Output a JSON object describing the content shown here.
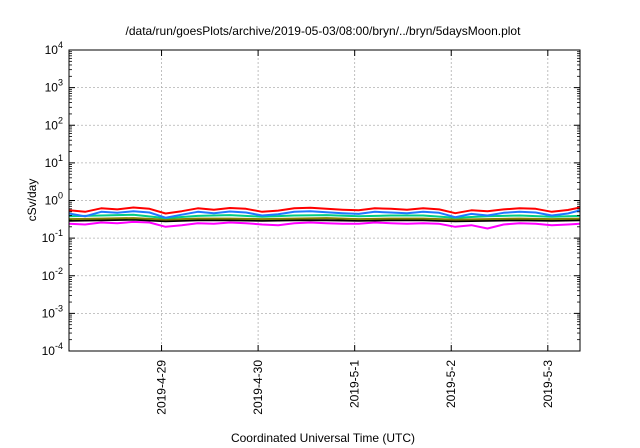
{
  "chart_data": {
    "type": "line",
    "title": "/data/run/goesPlots/archive/2019-05-03/08:00/bryn/../bryn/5daysMoon.plot",
    "xlabel": "Coordinated Universal Time (UTC)",
    "ylabel": "cSv/day",
    "yscale": "log",
    "ylim": [
      0.0001,
      10000
    ],
    "xlim": [
      "2019-04-28T01:00",
      "2019-05-03T08:00"
    ],
    "grid": true,
    "y_ticks": [
      {
        "value": 0.0001,
        "base": "10",
        "exp": "-4"
      },
      {
        "value": 0.001,
        "base": "10",
        "exp": "-3"
      },
      {
        "value": 0.01,
        "base": "10",
        "exp": "-2"
      },
      {
        "value": 0.1,
        "base": "10",
        "exp": "-1"
      },
      {
        "value": 1,
        "base": "10",
        "exp": "0"
      },
      {
        "value": 10,
        "base": "10",
        "exp": "1"
      },
      {
        "value": 100,
        "base": "10",
        "exp": "2"
      },
      {
        "value": 1000,
        "base": "10",
        "exp": "3"
      },
      {
        "value": 10000,
        "base": "10",
        "exp": "4"
      }
    ],
    "x_ticks": [
      {
        "value": "2019-04-29T00:00",
        "label": "2019-4-29"
      },
      {
        "value": "2019-04-30T00:00",
        "label": "2019-4-30"
      },
      {
        "value": "2019-05-01T00:00",
        "label": "2019-5-1"
      },
      {
        "value": "2019-05-02T00:00",
        "label": "2019-5-2"
      },
      {
        "value": "2019-05-03T00:00",
        "label": "2019-5-3"
      }
    ],
    "series": [
      {
        "color": "#ff00ff",
        "values": [
          [
            "2019-04-28T01:00",
            0.24
          ],
          [
            "2019-04-28T05:00",
            0.23
          ],
          [
            "2019-04-28T09:00",
            0.26
          ],
          [
            "2019-04-28T13:00",
            0.25
          ],
          [
            "2019-04-28T17:00",
            0.27
          ],
          [
            "2019-04-28T21:00",
            0.26
          ],
          [
            "2019-04-29T01:00",
            0.2
          ],
          [
            "2019-04-29T05:00",
            0.22
          ],
          [
            "2019-04-29T09:00",
            0.25
          ],
          [
            "2019-04-29T13:00",
            0.24
          ],
          [
            "2019-04-29T17:00",
            0.26
          ],
          [
            "2019-04-29T21:00",
            0.25
          ],
          [
            "2019-04-30T01:00",
            0.23
          ],
          [
            "2019-04-30T05:00",
            0.22
          ],
          [
            "2019-04-30T09:00",
            0.25
          ],
          [
            "2019-04-30T13:00",
            0.26
          ],
          [
            "2019-04-30T17:00",
            0.25
          ],
          [
            "2019-04-30T21:00",
            0.24
          ],
          [
            "2019-05-01T01:00",
            0.24
          ],
          [
            "2019-05-01T05:00",
            0.26
          ],
          [
            "2019-05-01T09:00",
            0.25
          ],
          [
            "2019-05-01T13:00",
            0.24
          ],
          [
            "2019-05-01T17:00",
            0.25
          ],
          [
            "2019-05-01T21:00",
            0.24
          ],
          [
            "2019-05-02T01:00",
            0.2
          ],
          [
            "2019-05-02T05:00",
            0.22
          ],
          [
            "2019-05-02T09:00",
            0.18
          ],
          [
            "2019-05-02T13:00",
            0.23
          ],
          [
            "2019-05-02T17:00",
            0.25
          ],
          [
            "2019-05-02T21:00",
            0.24
          ],
          [
            "2019-05-03T01:00",
            0.22
          ],
          [
            "2019-05-03T05:00",
            0.23
          ],
          [
            "2019-05-03T08:00",
            0.24
          ]
        ]
      },
      {
        "color": "#000000",
        "values": [
          [
            "2019-04-28T01:00",
            0.29
          ],
          [
            "2019-04-28T09:00",
            0.3
          ],
          [
            "2019-04-28T17:00",
            0.31
          ],
          [
            "2019-04-29T01:00",
            0.28
          ],
          [
            "2019-04-29T09:00",
            0.3
          ],
          [
            "2019-04-29T17:00",
            0.3
          ],
          [
            "2019-04-30T01:00",
            0.29
          ],
          [
            "2019-04-30T09:00",
            0.3
          ],
          [
            "2019-04-30T17:00",
            0.3
          ],
          [
            "2019-05-01T01:00",
            0.29
          ],
          [
            "2019-05-01T09:00",
            0.3
          ],
          [
            "2019-05-01T17:00",
            0.3
          ],
          [
            "2019-05-02T01:00",
            0.28
          ],
          [
            "2019-05-02T09:00",
            0.29
          ],
          [
            "2019-05-02T17:00",
            0.3
          ],
          [
            "2019-05-03T01:00",
            0.29
          ],
          [
            "2019-05-03T08:00",
            0.3
          ]
        ]
      },
      {
        "color": "#808000",
        "values": [
          [
            "2019-04-28T01:00",
            0.32
          ],
          [
            "2019-04-28T09:00",
            0.33
          ],
          [
            "2019-04-28T17:00",
            0.34
          ],
          [
            "2019-04-29T01:00",
            0.31
          ],
          [
            "2019-04-29T09:00",
            0.33
          ],
          [
            "2019-04-29T17:00",
            0.33
          ],
          [
            "2019-04-30T01:00",
            0.32
          ],
          [
            "2019-04-30T09:00",
            0.33
          ],
          [
            "2019-04-30T17:00",
            0.34
          ],
          [
            "2019-05-01T01:00",
            0.32
          ],
          [
            "2019-05-01T09:00",
            0.33
          ],
          [
            "2019-05-01T17:00",
            0.33
          ],
          [
            "2019-05-02T01:00",
            0.31
          ],
          [
            "2019-05-02T09:00",
            0.32
          ],
          [
            "2019-05-02T17:00",
            0.33
          ],
          [
            "2019-05-03T01:00",
            0.32
          ],
          [
            "2019-05-03T08:00",
            0.33
          ]
        ]
      },
      {
        "color": "#00cc88",
        "values": [
          [
            "2019-04-28T01:00",
            0.38
          ],
          [
            "2019-04-28T09:00",
            0.4
          ],
          [
            "2019-04-28T17:00",
            0.42
          ],
          [
            "2019-04-29T01:00",
            0.34
          ],
          [
            "2019-04-29T09:00",
            0.39
          ],
          [
            "2019-04-29T17:00",
            0.41
          ],
          [
            "2019-04-30T01:00",
            0.37
          ],
          [
            "2019-04-30T09:00",
            0.4
          ],
          [
            "2019-04-30T17:00",
            0.41
          ],
          [
            "2019-05-01T01:00",
            0.38
          ],
          [
            "2019-05-01T09:00",
            0.4
          ],
          [
            "2019-05-01T17:00",
            0.4
          ],
          [
            "2019-05-02T01:00",
            0.35
          ],
          [
            "2019-05-02T09:00",
            0.38
          ],
          [
            "2019-05-02T17:00",
            0.4
          ],
          [
            "2019-05-03T01:00",
            0.37
          ],
          [
            "2019-05-03T08:00",
            0.39
          ]
        ]
      },
      {
        "color": "#1f77ff",
        "values": [
          [
            "2019-04-28T01:00",
            0.45
          ],
          [
            "2019-04-28T05:00",
            0.38
          ],
          [
            "2019-04-28T09:00",
            0.5
          ],
          [
            "2019-04-28T13:00",
            0.47
          ],
          [
            "2019-04-28T17:00",
            0.52
          ],
          [
            "2019-04-28T21:00",
            0.48
          ],
          [
            "2019-04-29T01:00",
            0.35
          ],
          [
            "2019-04-29T05:00",
            0.42
          ],
          [
            "2019-04-29T09:00",
            0.5
          ],
          [
            "2019-04-29T13:00",
            0.46
          ],
          [
            "2019-04-29T17:00",
            0.51
          ],
          [
            "2019-04-29T21:00",
            0.48
          ],
          [
            "2019-04-30T01:00",
            0.4
          ],
          [
            "2019-04-30T05:00",
            0.43
          ],
          [
            "2019-04-30T09:00",
            0.5
          ],
          [
            "2019-04-30T13:00",
            0.52
          ],
          [
            "2019-04-30T17:00",
            0.49
          ],
          [
            "2019-04-30T21:00",
            0.46
          ],
          [
            "2019-05-01T01:00",
            0.44
          ],
          [
            "2019-05-01T05:00",
            0.5
          ],
          [
            "2019-05-01T09:00",
            0.48
          ],
          [
            "2019-05-01T13:00",
            0.46
          ],
          [
            "2019-05-01T17:00",
            0.5
          ],
          [
            "2019-05-01T21:00",
            0.47
          ],
          [
            "2019-05-02T01:00",
            0.36
          ],
          [
            "2019-05-02T05:00",
            0.44
          ],
          [
            "2019-05-02T09:00",
            0.4
          ],
          [
            "2019-05-02T13:00",
            0.47
          ],
          [
            "2019-05-02T17:00",
            0.5
          ],
          [
            "2019-05-02T21:00",
            0.48
          ],
          [
            "2019-05-03T01:00",
            0.4
          ],
          [
            "2019-05-03T05:00",
            0.45
          ],
          [
            "2019-05-03T08:00",
            0.55
          ]
        ]
      },
      {
        "color": "#ff0000",
        "values": [
          [
            "2019-04-28T01:00",
            0.55
          ],
          [
            "2019-04-28T05:00",
            0.5
          ],
          [
            "2019-04-28T09:00",
            0.62
          ],
          [
            "2019-04-28T13:00",
            0.58
          ],
          [
            "2019-04-28T17:00",
            0.65
          ],
          [
            "2019-04-28T21:00",
            0.6
          ],
          [
            "2019-04-29T01:00",
            0.45
          ],
          [
            "2019-04-29T05:00",
            0.52
          ],
          [
            "2019-04-29T09:00",
            0.62
          ],
          [
            "2019-04-29T13:00",
            0.57
          ],
          [
            "2019-04-29T17:00",
            0.63
          ],
          [
            "2019-04-29T21:00",
            0.6
          ],
          [
            "2019-04-30T01:00",
            0.5
          ],
          [
            "2019-04-30T05:00",
            0.54
          ],
          [
            "2019-04-30T09:00",
            0.62
          ],
          [
            "2019-04-30T13:00",
            0.64
          ],
          [
            "2019-04-30T17:00",
            0.6
          ],
          [
            "2019-04-30T21:00",
            0.57
          ],
          [
            "2019-05-01T01:00",
            0.55
          ],
          [
            "2019-05-01T05:00",
            0.62
          ],
          [
            "2019-05-01T09:00",
            0.6
          ],
          [
            "2019-05-01T13:00",
            0.57
          ],
          [
            "2019-05-01T17:00",
            0.62
          ],
          [
            "2019-05-01T21:00",
            0.58
          ],
          [
            "2019-05-02T01:00",
            0.46
          ],
          [
            "2019-05-02T05:00",
            0.55
          ],
          [
            "2019-05-02T09:00",
            0.52
          ],
          [
            "2019-05-02T13:00",
            0.58
          ],
          [
            "2019-05-02T17:00",
            0.62
          ],
          [
            "2019-05-02T21:00",
            0.6
          ],
          [
            "2019-05-03T01:00",
            0.5
          ],
          [
            "2019-05-03T05:00",
            0.56
          ],
          [
            "2019-05-03T08:00",
            0.65
          ]
        ]
      }
    ]
  }
}
